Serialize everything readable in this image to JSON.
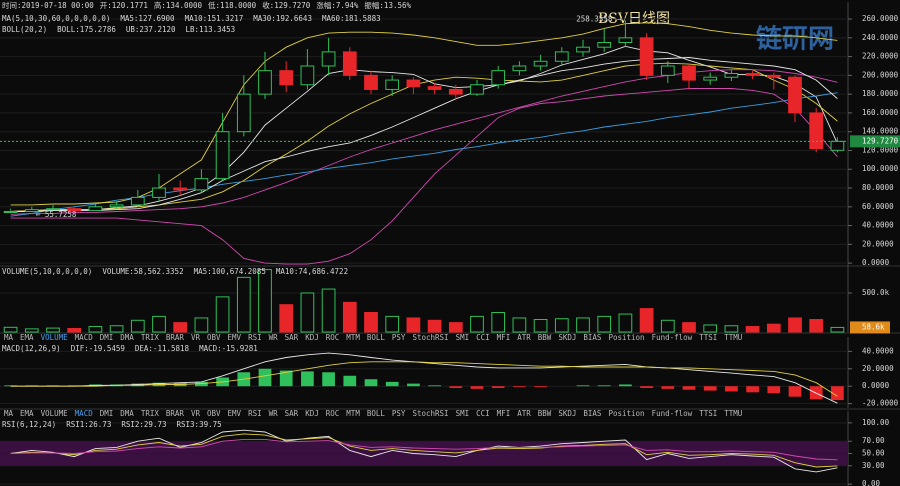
{
  "header": [
    {
      "text": "时间:2019-07-18 00:00",
      "color": "#d8d8d8"
    },
    {
      "text": "开:120.1771",
      "color": "#d8d8d8"
    },
    {
      "text": "高:134.0000",
      "color": "#d8d8d8"
    },
    {
      "text": "低:118.0000",
      "color": "#d8d8d8"
    },
    {
      "text": "收:129.7270",
      "color": "#d8d8d8"
    },
    {
      "text": "涨幅:7.94%",
      "color": "#3fd46b"
    },
    {
      "text": "振幅:13.56%",
      "color": "#d8d8d8"
    }
  ],
  "watermark": "链研网",
  "tabs": [
    "MA",
    "EMA",
    "VOLUME",
    "MACD",
    "DMI",
    "DMA",
    "TRIX",
    "BRAR",
    "VR",
    "OBV",
    "EMV",
    "RSI",
    "WR",
    "SAR",
    "KDJ",
    "ROC",
    "MTM",
    "BOLL",
    "PSY",
    "StochRSI",
    "SMI",
    "CCI",
    "MFI",
    "ATR",
    "BBW",
    "SKDJ",
    "BIAS",
    "Position",
    "Fund-flow",
    "TTSI",
    "TTMU"
  ],
  "active_tabs": [
    "VOLUME",
    "MACD"
  ],
  "chart_data": [
    {
      "type": "candlestick",
      "title": "BSV日线图",
      "up_color": "#2fbf5b",
      "down_color": "#e8262a",
      "open": [
        54,
        55,
        57,
        58,
        56,
        60,
        62,
        70,
        80,
        78,
        90,
        140,
        180,
        205,
        190,
        210,
        225,
        200,
        185,
        195,
        188,
        185,
        180,
        190,
        205,
        210,
        215,
        225,
        230,
        235,
        240,
        200,
        210,
        195,
        198,
        202,
        200,
        198,
        160,
        120.1771
      ],
      "high": [
        58,
        60,
        62,
        60,
        63,
        66,
        78,
        95,
        88,
        100,
        160,
        200,
        225,
        215,
        228,
        240,
        230,
        205,
        200,
        198,
        192,
        190,
        195,
        210,
        215,
        222,
        230,
        238,
        250,
        258.3558,
        245,
        215,
        212,
        203,
        206,
        205,
        203,
        200,
        165,
        134
      ],
      "low": [
        56,
        55.7258,
        57,
        56,
        57,
        58,
        60,
        66,
        72,
        75,
        88,
        135,
        175,
        182,
        185,
        200,
        195,
        180,
        178,
        180,
        180,
        175,
        178,
        186,
        200,
        205,
        210,
        220,
        225,
        230,
        195,
        192,
        185,
        190,
        194,
        196,
        185,
        150,
        118,
        118
      ],
      "close": [
        55,
        57,
        58,
        56,
        60,
        62,
        70,
        80,
        78,
        90,
        140,
        180,
        205,
        190,
        210,
        225,
        200,
        185,
        195,
        188,
        185,
        180,
        190,
        205,
        210,
        215,
        225,
        230,
        235,
        240,
        200,
        210,
        195,
        198,
        202,
        200,
        198,
        160,
        122,
        129.727
      ],
      "last_label": "129.7270",
      "ylim": [
        -2,
        267.5
      ],
      "yticks": [
        {
          "value": 260,
          "label": "260.0000"
        },
        {
          "value": 240,
          "label": "240.0000"
        },
        {
          "value": 220,
          "label": "220.0000"
        },
        {
          "value": 200,
          "label": "200.0000"
        },
        {
          "value": 180,
          "label": "180.0000"
        },
        {
          "value": 160,
          "label": "160.0000"
        },
        {
          "value": 140,
          "label": "140.0000"
        },
        {
          "value": 120,
          "label": "120.0000"
        },
        {
          "value": 100,
          "label": "100.0000"
        },
        {
          "value": 80,
          "label": "80.0000"
        },
        {
          "value": 60,
          "label": "60.0000"
        },
        {
          "value": 40,
          "label": "40.0000"
        },
        {
          "value": 20,
          "label": "20.0000"
        },
        {
          "value": 0,
          "label": "0.0000"
        }
      ],
      "max_label": "258.3558 →",
      "min_label": "← 55.7258",
      "ma_label": "MA(5,10,30,60,0,0,0,0,0)",
      "ma_series": [
        {
          "name": "MA5:127.6900",
          "color": "#e8e8e8",
          "values": [
            55,
            56,
            57,
            57,
            57,
            59,
            61,
            66,
            72,
            80,
            96,
            118,
            147,
            165,
            183,
            202,
            206,
            204,
            203,
            201,
            191,
            187,
            188,
            190,
            194,
            202,
            211,
            217,
            223,
            231,
            226,
            224,
            216,
            209,
            201,
            201,
            199,
            191,
            177,
            127.69
          ]
        },
        {
          "name": "MA10:151.3217",
          "color": "#e0d040",
          "values": [
            55,
            56,
            56,
            57,
            57,
            58,
            60,
            62,
            65,
            68,
            76,
            88,
            103,
            116,
            130,
            146,
            159,
            170,
            180,
            190,
            195,
            198,
            197,
            195,
            194,
            193,
            195,
            200,
            205,
            210,
            212,
            213,
            212,
            210,
            208,
            206,
            195,
            185,
            170,
            151.3217
          ]
        },
        {
          "name": "MA30:192.6643",
          "color": "#d04ab0",
          "values": [
            52,
            53,
            53,
            54,
            54,
            55,
            56,
            57,
            58,
            60,
            64,
            70,
            78,
            86,
            95,
            104,
            113,
            121,
            128,
            135,
            142,
            148,
            154,
            160,
            166,
            172,
            178,
            183,
            188,
            193,
            197,
            200,
            203,
            205,
            206,
            206,
            205,
            202,
            198,
            192.6643
          ]
        },
        {
          "name": "MA60:181.5883",
          "color": "#3a9ee0",
          "values": [
            50,
            53,
            57,
            60,
            63,
            67,
            70,
            74,
            77,
            80,
            84,
            87,
            90,
            94,
            97,
            101,
            104,
            107,
            111,
            114,
            117,
            121,
            124,
            128,
            131,
            134,
            138,
            141,
            145,
            148,
            151,
            155,
            158,
            161,
            165,
            168,
            171,
            175,
            178,
            181.5883
          ]
        }
      ],
      "boll_label": "BOLL(20,2)",
      "boll_series": [
        {
          "name": "BOLL:175.2786",
          "color": "#e8e8e8",
          "values": [
            55,
            55,
            56,
            56,
            56,
            57,
            58,
            62,
            68,
            75,
            88,
            98,
            108,
            113,
            119,
            124,
            128,
            136,
            145,
            155,
            165,
            175,
            183,
            190,
            195,
            200,
            205,
            208,
            212,
            215,
            217,
            218,
            219,
            216,
            214,
            212,
            210,
            206,
            195,
            175.2786
          ]
        },
        {
          "name": "UB:237.2120",
          "color": "#e0d040",
          "values": [
            62,
            62,
            63,
            63,
            64,
            65,
            70,
            80,
            95,
            110,
            150,
            190,
            215,
            230,
            240,
            245,
            246,
            246,
            245,
            243,
            240,
            236,
            232,
            232,
            234,
            237,
            240,
            244,
            250,
            255,
            256,
            255,
            252,
            248,
            245,
            243,
            242,
            242,
            240,
            237.212
          ]
        },
        {
          "name": "LB:113.3453",
          "color": "#d04ab0",
          "values": [
            48,
            48,
            48,
            48,
            48,
            48,
            46,
            44,
            42,
            40,
            25,
            5,
            0,
            -1,
            -1,
            2,
            10,
            25,
            45,
            70,
            95,
            115,
            135,
            155,
            165,
            170,
            172,
            175,
            178,
            180,
            182,
            184,
            186,
            186,
            186,
            184,
            180,
            165,
            140,
            113.3453
          ]
        }
      ]
    },
    {
      "type": "bar",
      "title": "VOLUME(5,10,0,0,0,0)",
      "legend": [
        {
          "text": "VOLUME:58,562.3352",
          "color": "#e8e8e8"
        },
        {
          "text": "MA5:100,674.2085",
          "color": "#e8e8e8"
        },
        {
          "text": "MA10:74,686.4722",
          "color": "#e0d040"
        }
      ],
      "values": [
        60000,
        40000,
        50000,
        45000,
        70000,
        80000,
        150000,
        200000,
        120000,
        180000,
        450000,
        700000,
        800000,
        350000,
        500000,
        550000,
        380000,
        250000,
        200000,
        180000,
        150000,
        120000,
        200000,
        250000,
        180000,
        160000,
        170000,
        180000,
        200000,
        230000,
        300000,
        150000,
        120000,
        90000,
        80000,
        70000,
        100000,
        180000,
        160000,
        58562.3352
      ],
      "last_label": "58.6k",
      "ylim": [
        0,
        820000
      ],
      "yticks": [
        {
          "value": 500000,
          "label": "500.0k"
        }
      ]
    },
    {
      "type": "macd",
      "title": "MACD(12,26,9)",
      "series": [
        {
          "name": "DIF:-19.5459",
          "color": "#e8e8e8",
          "values": [
            0,
            0,
            0,
            0,
            1,
            1,
            2,
            3,
            4,
            5,
            12,
            20,
            28,
            33,
            36,
            38,
            36,
            33,
            30,
            28,
            26,
            24,
            22,
            21,
            21,
            21,
            22,
            23,
            24,
            25,
            22,
            21,
            19,
            17,
            15,
            13,
            11,
            4,
            -8,
            -19.5459
          ]
        },
        {
          "name": "DEA:-11.5818",
          "color": "#e0d040",
          "values": [
            0,
            0,
            0,
            0,
            0,
            1,
            1,
            2,
            2,
            3,
            5,
            8,
            12,
            16,
            20,
            24,
            27,
            28,
            28,
            28,
            27,
            27,
            26,
            25,
            24,
            23,
            23,
            22,
            22,
            22,
            22,
            21,
            21,
            20,
            19,
            18,
            17,
            13,
            4,
            -11.5818
          ]
        },
        {
          "name": "MACD:-15.9281",
          "color": "#d04ab0",
          "values": [
            1,
            1,
            1,
            1,
            2,
            2,
            3,
            4,
            4,
            5,
            10,
            16,
            20,
            18,
            17,
            16,
            12,
            8,
            5,
            3,
            1,
            -2,
            -3,
            -2,
            -1,
            -1,
            0,
            1,
            1,
            2,
            -2,
            -3,
            -4,
            -5,
            -6,
            -7,
            -8,
            -12,
            -15,
            -15.9281
          ]
        }
      ],
      "ylim": [
        -25,
        45
      ],
      "yticks": [
        {
          "value": 40,
          "label": "40.0000"
        },
        {
          "value": 20,
          "label": "20.0000"
        },
        {
          "value": 0,
          "label": "0.0000"
        },
        {
          "value": -20,
          "label": "-20.0000"
        }
      ]
    },
    {
      "type": "line",
      "title": "RSI(6,12,24)",
      "band": [
        30,
        70
      ],
      "series": [
        {
          "name": "RSI1:26.73",
          "color": "#e8e8e8",
          "values": [
            50,
            55,
            52,
            45,
            58,
            60,
            70,
            75,
            60,
            68,
            85,
            88,
            85,
            70,
            75,
            78,
            55,
            45,
            55,
            50,
            48,
            45,
            55,
            62,
            60,
            62,
            66,
            68,
            70,
            72,
            40,
            50,
            42,
            45,
            48,
            46,
            44,
            25,
            20,
            26.73
          ]
        },
        {
          "name": "RSI2:29.73",
          "color": "#e0d040",
          "values": [
            50,
            52,
            51,
            48,
            55,
            57,
            64,
            68,
            62,
            65,
            78,
            82,
            80,
            72,
            74,
            76,
            62,
            55,
            58,
            55,
            53,
            51,
            55,
            59,
            58,
            59,
            62,
            63,
            65,
            66,
            48,
            52,
            47,
            48,
            50,
            49,
            47,
            35,
            28,
            29.73
          ]
        },
        {
          "name": "RSI3:39.75",
          "color": "#d04ab0",
          "values": [
            50,
            51,
            51,
            50,
            53,
            54,
            58,
            61,
            59,
            61,
            70,
            73,
            73,
            69,
            70,
            71,
            64,
            60,
            61,
            59,
            58,
            57,
            58,
            60,
            60,
            60,
            61,
            62,
            63,
            64,
            55,
            56,
            53,
            53,
            54,
            53,
            52,
            46,
            41,
            39.75
          ]
        }
      ],
      "ylim": [
        -3,
        103
      ],
      "yticks": [
        {
          "value": 100,
          "label": "100.00"
        },
        {
          "value": 70,
          "label": "70.00"
        },
        {
          "value": 50,
          "label": "50.00"
        },
        {
          "value": 30,
          "label": "30.00"
        },
        {
          "value": 0,
          "label": "0.00"
        }
      ]
    }
  ]
}
